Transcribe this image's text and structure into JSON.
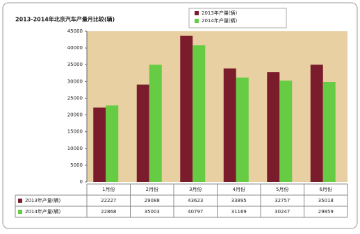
{
  "chart_data": {
    "type": "bar",
    "title": "2013-2014年北京汽车产量月比较(辆)",
    "categories": [
      "1月份",
      "2月份",
      "3月份",
      "4月份",
      "5月份",
      "6月份"
    ],
    "series": [
      {
        "name": "2013年产量(辆)",
        "color": "#7b1c2c",
        "values": [
          22227,
          29088,
          43623,
          33895,
          32757,
          35018
        ]
      },
      {
        "name": "2014年产量(辆)",
        "color": "#66cc44",
        "values": [
          22868,
          35003,
          40797,
          31169,
          30247,
          29859
        ]
      }
    ],
    "ylim": [
      0,
      45000
    ],
    "yticks": [
      0,
      5000,
      10000,
      15000,
      20000,
      25000,
      30000,
      35000,
      40000,
      45000
    ],
    "plot_background": "#e8d0a2",
    "data_table": true
  }
}
